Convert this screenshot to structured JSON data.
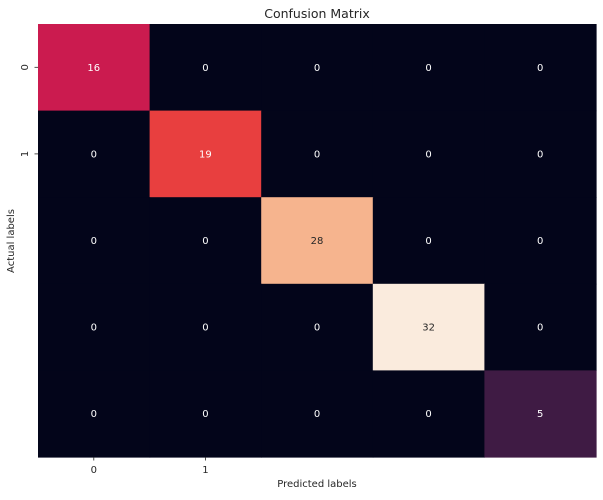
{
  "chart_data": {
    "type": "heatmap",
    "title": "Confusion Matrix",
    "xlabel": "Predicted labels",
    "ylabel": "Actual labels",
    "x_tick_labels": [
      "0",
      "1"
    ],
    "y_tick_labels": [
      "0",
      "1"
    ],
    "rows": 5,
    "cols": 5,
    "values": [
      [
        16,
        0,
        0,
        0,
        0
      ],
      [
        0,
        19,
        0,
        0,
        0
      ],
      [
        0,
        0,
        28,
        0,
        0
      ],
      [
        0,
        0,
        0,
        32,
        0
      ],
      [
        0,
        0,
        0,
        0,
        5
      ]
    ],
    "value_range": [
      0,
      32
    ],
    "colormap": "rocket",
    "colorbar": false,
    "grid": false,
    "colors": {
      "zero": "#03051a",
      "val_5": "#3f1b44",
      "val_16": "#cb1b4f",
      "val_19": "#e83f3f",
      "val_28": "#f6b48e",
      "val_32": "#faebdd",
      "annotation_light": "#ffffff",
      "annotation_dark": "#262626"
    }
  }
}
